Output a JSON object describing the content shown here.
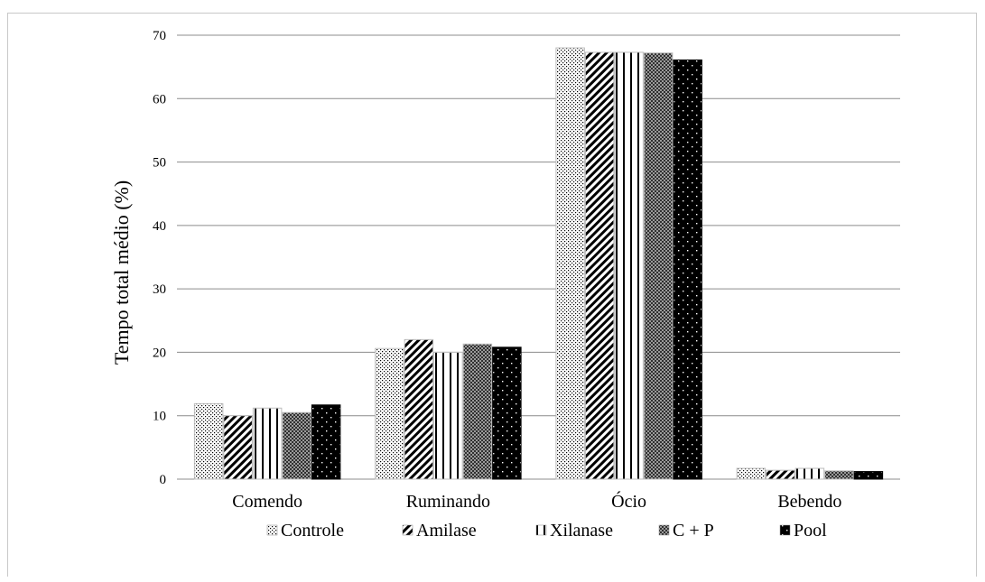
{
  "chart_data": {
    "type": "bar",
    "title": "",
    "xlabel": "",
    "ylabel": "Tempo total médio (%)",
    "ylim": [
      0,
      70
    ],
    "yticks": [
      0,
      10,
      20,
      30,
      40,
      50,
      60,
      70
    ],
    "grid": true,
    "legend_position": "bottom",
    "categories": [
      "Comendo",
      "Ruminando",
      "Ócio",
      "Bebendo"
    ],
    "series": [
      {
        "name": "Controle",
        "values": [
          11.9,
          20.6,
          68.0,
          1.7
        ],
        "pattern": "dots-fine"
      },
      {
        "name": "Amilase",
        "values": [
          10.0,
          22.0,
          67.3,
          1.4
        ],
        "pattern": "diagonal"
      },
      {
        "name": "Xilanase",
        "values": [
          11.2,
          20.0,
          67.3,
          1.7
        ],
        "pattern": "vertical"
      },
      {
        "name": "C + P",
        "values": [
          10.5,
          21.3,
          67.2,
          1.3
        ],
        "pattern": "checker"
      },
      {
        "name": "Pool",
        "values": [
          11.7,
          20.8,
          66.1,
          1.2
        ],
        "pattern": "black-dots"
      }
    ]
  }
}
